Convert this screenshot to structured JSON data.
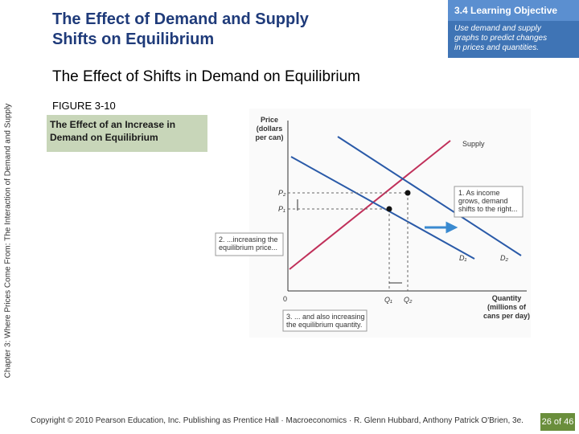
{
  "header": {
    "title_lines": [
      "The Effect of Demand and Supply",
      "Shifts on Equilibrium"
    ]
  },
  "objective": {
    "label": "3.4 Learning Objective",
    "lines": [
      "Use demand and supply",
      "graphs to predict changes",
      "in prices and quantities."
    ]
  },
  "subtitle": "The Effect of Shifts in Demand on Equilibrium",
  "side_text": "Chapter 3: Where Prices Come From: The Interaction of Demand and Supply",
  "figure": {
    "number": "FIGURE 3-10",
    "caption_lines": [
      "The Effect of an Increase in",
      "Demand on Equilibrium"
    ]
  },
  "diagram": {
    "y_axis_lines": [
      "Price",
      "(dollars",
      "per can)"
    ],
    "x_axis_lines": [
      "Quantity",
      "(millions of",
      "cans per day)"
    ],
    "origin": "0",
    "supply": "Supply",
    "p1": "P₁",
    "p2": "P₂",
    "q1": "Q₁",
    "q2": "Q₂",
    "d1": "D₁",
    "d2": "D₂",
    "callout1_lines": [
      "1. As income",
      "grows, demand",
      "shifts to the right..."
    ],
    "callout2_lines": [
      "2. ...increasing the",
      "equilibrium price..."
    ],
    "callout3_lines": [
      "3. ... and also increasing",
      "the equilibrium quantity."
    ]
  },
  "footer": {
    "copyright": "Copyright © 2010 Pearson Education, Inc. Publishing as Prentice Hall · Macroeconomics · R. Glenn Hubbard, Anthony Patrick O'Brien, 3e.",
    "page": "26 of 46"
  }
}
